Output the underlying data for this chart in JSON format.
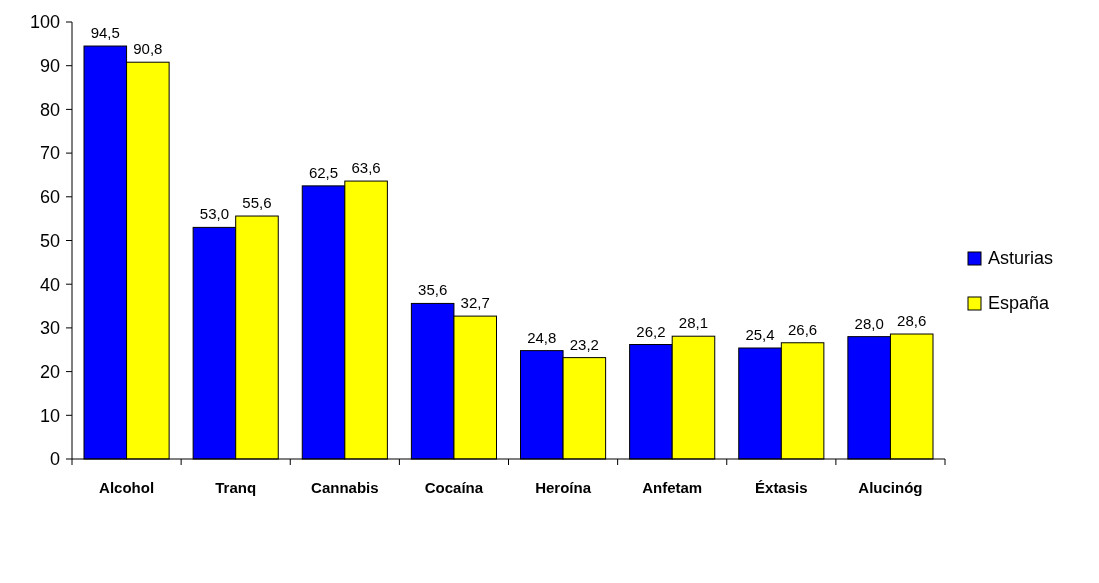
{
  "chart_data": {
    "type": "bar",
    "categories": [
      "Alcohol",
      "Tranq",
      "Cannabis",
      "Cocaína",
      "Heroína",
      "Anfetam",
      "Éxtasis",
      "Alucinóg"
    ],
    "series": [
      {
        "name": "Asturias",
        "color": "#0000ff",
        "values": [
          94.5,
          53.0,
          62.5,
          35.6,
          24.8,
          26.2,
          25.4,
          28.0
        ],
        "value_labels": [
          "94,5",
          "53,0",
          "62,5",
          "35,6",
          "24,8",
          "26,2",
          "25,4",
          "28,0"
        ]
      },
      {
        "name": "España",
        "color": "#ffff00",
        "values": [
          90.8,
          55.6,
          63.6,
          32.7,
          23.2,
          28.1,
          26.6,
          28.6
        ],
        "value_labels": [
          "90,8",
          "55,6",
          "63,6",
          "32,7",
          "23,2",
          "28,1",
          "26,6",
          "28,6"
        ]
      }
    ],
    "ylim": [
      0,
      100
    ],
    "yticks": [
      0,
      10,
      20,
      30,
      40,
      50,
      60,
      70,
      80,
      90,
      100
    ],
    "grid": false,
    "legend": "right"
  }
}
